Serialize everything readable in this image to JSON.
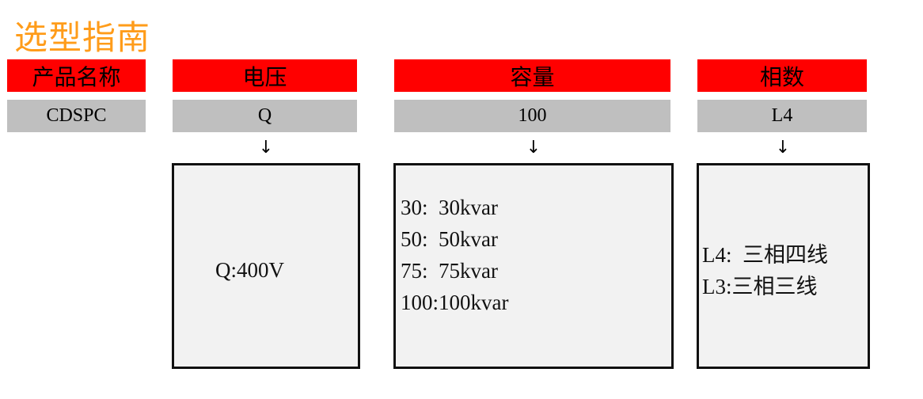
{
  "title": "选型指南",
  "columns": [
    {
      "header": "产品名称",
      "value": "CDSPC"
    },
    {
      "header": "电压",
      "value": "Q",
      "arrow": "↓",
      "options": [
        "Q:400V"
      ]
    },
    {
      "header": "容量",
      "value": "100",
      "arrow": "↓",
      "options": [
        "30:  30kvar",
        "50:  50kvar",
        "75:  75kvar",
        "100:100kvar"
      ]
    },
    {
      "header": "相数",
      "value": "L4",
      "arrow": "↓",
      "options": [
        "L4:  三相四线",
        "L3:三相三线"
      ]
    }
  ],
  "colors": {
    "title": "#ff9c1a",
    "header_bg": "#ff0000",
    "value_bg": "#bfbfbf",
    "box_bg": "#f2f2f2"
  }
}
